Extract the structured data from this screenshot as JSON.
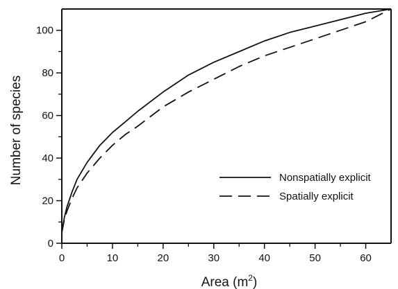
{
  "chart_data": {
    "type": "line",
    "xlabel": "Area (m",
    "xlabel_sup": "2",
    "xlabel_close": ")",
    "ylabel": "Number of species",
    "xlim": [
      0,
      65
    ],
    "ylim": [
      0,
      110
    ],
    "x_ticks": [
      0,
      10,
      20,
      30,
      40,
      50,
      60
    ],
    "y_ticks": [
      0,
      20,
      40,
      60,
      80,
      100
    ],
    "x_minor_ticks": [
      5,
      15,
      25,
      35,
      45,
      55
    ],
    "y_minor_ticks": [
      10,
      30,
      50,
      70,
      90
    ],
    "grid": false,
    "legend_position": "lower-right",
    "series": [
      {
        "name": "Nonspatially explicit",
        "style": "solid",
        "color": "#111111",
        "x": [
          0,
          0.5,
          1,
          2,
          3,
          5,
          7.5,
          10,
          12.5,
          15,
          20,
          25,
          30,
          35,
          40,
          45,
          50,
          55,
          60,
          65
        ],
        "y": [
          5,
          12,
          17,
          24,
          30,
          38,
          46,
          52,
          57,
          62,
          71,
          79,
          85,
          90,
          95,
          99,
          102,
          105,
          108,
          110
        ]
      },
      {
        "name": "Spatially explicit",
        "style": "dashed",
        "color": "#111111",
        "x": [
          0,
          0.5,
          1,
          2,
          3,
          5,
          7.5,
          10,
          12.5,
          15,
          20,
          25,
          30,
          35,
          40,
          45,
          50,
          55,
          60,
          65
        ],
        "y": [
          5,
          11,
          15,
          21,
          26,
          33,
          40,
          46,
          51,
          55,
          64,
          71,
          77,
          83,
          88,
          92,
          96,
          100,
          104,
          110
        ]
      }
    ]
  }
}
